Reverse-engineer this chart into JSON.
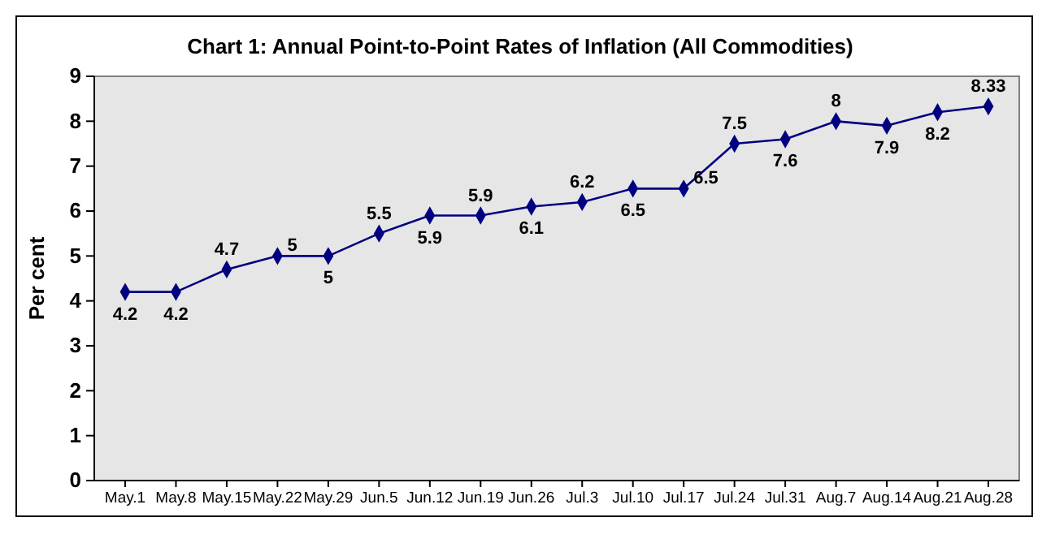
{
  "chart_data": {
    "type": "line",
    "title": "Chart 1: Annual Point-to-Point Rates of Inflation (All Commodities)",
    "ylabel": "Per cent",
    "categories": [
      "May.1",
      "May.8",
      "May.15",
      "May.22",
      "May.29",
      "Jun.5",
      "Jun.12",
      "Jun.19",
      "Jun.26",
      "Jul.3",
      "Jul.10",
      "Jul.17",
      "Jul.24",
      "Jul.31",
      "Aug.7",
      "Aug.14",
      "Aug.21",
      "Aug.28"
    ],
    "series": [
      {
        "color": "#000080",
        "values": [
          4.2,
          4.2,
          4.7,
          5,
          5,
          5.5,
          5.9,
          5.9,
          6.1,
          6.2,
          6.5,
          6.5,
          7.5,
          7.6,
          8,
          7.9,
          8.2,
          8.33
        ]
      }
    ],
    "ylim": [
      0,
      9
    ],
    "yticks": [
      0,
      1,
      2,
      3,
      4,
      5,
      6,
      7,
      8,
      9
    ],
    "marker": "diamond",
    "data_labels": true,
    "grid": false,
    "legend": false
  }
}
